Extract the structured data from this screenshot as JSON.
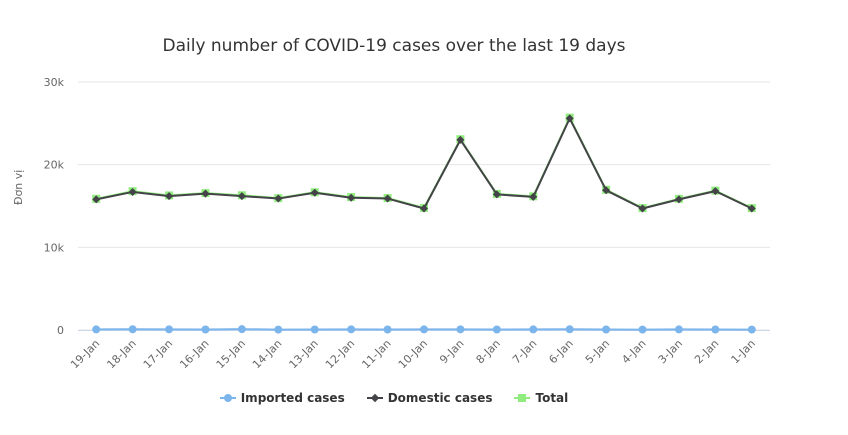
{
  "chart_data": {
    "type": "line",
    "title": "Daily number of COVID-19 cases over the last 19 days",
    "ylabel": "Đơn vị",
    "xlabel": "",
    "categories": [
      "19-Jan",
      "18-Jan",
      "17-Jan",
      "16-Jan",
      "15-Jan",
      "14-Jan",
      "13-Jan",
      "12-Jan",
      "11-Jan",
      "10-Jan",
      "9-Jan",
      "8-Jan",
      "7-Jan",
      "6-Jan",
      "5-Jan",
      "4-Jan",
      "3-Jan",
      "2-Jan",
      "1-Jan"
    ],
    "ylim": [
      0,
      30000
    ],
    "yticks": [
      0,
      10000,
      20000,
      30000
    ],
    "ytick_labels": [
      "0",
      "10k",
      "20k",
      "30k"
    ],
    "grid": true,
    "legend_position": "bottom",
    "series": [
      {
        "name": "Imported cases",
        "color": "#7cb5ec",
        "marker": "circle",
        "values": [
          70,
          90,
          80,
          60,
          100,
          50,
          60,
          80,
          60,
          70,
          80,
          60,
          70,
          90,
          60,
          50,
          70,
          60,
          50
        ]
      },
      {
        "name": "Domestic cases",
        "color": "#434348",
        "marker": "diamond",
        "values": [
          15800,
          16700,
          16200,
          16500,
          16200,
          15900,
          16600,
          16000,
          15900,
          14700,
          23000,
          16400,
          16100,
          25600,
          16900,
          14700,
          15800,
          16800,
          14700
        ]
      },
      {
        "name": "Total",
        "color": "#90ed7d",
        "marker": "square",
        "values": [
          15870,
          16790,
          16280,
          16560,
          16300,
          15950,
          16660,
          16080,
          15960,
          14770,
          23080,
          16460,
          16170,
          25690,
          16960,
          14750,
          15870,
          16860,
          14750
        ]
      }
    ]
  }
}
